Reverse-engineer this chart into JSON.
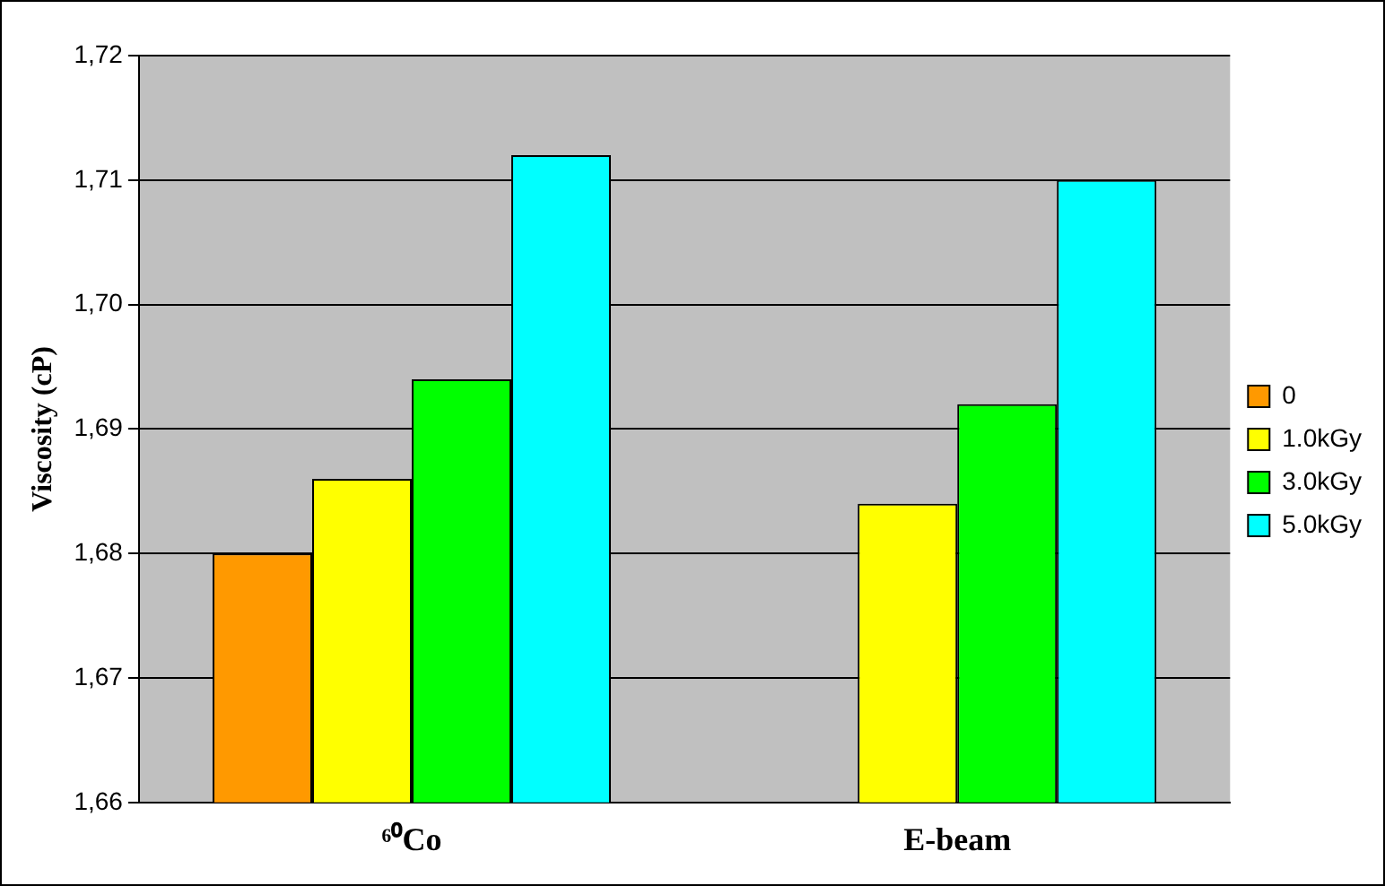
{
  "chart_data": {
    "type": "bar",
    "ylabel": "Viscosity (cP)",
    "categories": [
      "⁶⁰Co",
      "E-beam"
    ],
    "series": [
      {
        "name": "0",
        "color": "#ff9900",
        "values": [
          1.68,
          null
        ]
      },
      {
        "name": "1.0kGy",
        "color": "#ffff00",
        "values": [
          1.686,
          1.684
        ]
      },
      {
        "name": "3.0kGy",
        "color": "#00ff00",
        "values": [
          1.694,
          1.692
        ]
      },
      {
        "name": "5.0kGy",
        "color": "#00ffff",
        "values": [
          1.712,
          1.71
        ]
      }
    ],
    "ylim": [
      1.66,
      1.72
    ],
    "yticks": [
      {
        "value": 1.66,
        "label": "1,66"
      },
      {
        "value": 1.67,
        "label": "1,67"
      },
      {
        "value": 1.68,
        "label": "1,68"
      },
      {
        "value": 1.69,
        "label": "1,69"
      },
      {
        "value": 1.7,
        "label": "1,70"
      },
      {
        "value": 1.71,
        "label": "1,71"
      },
      {
        "value": 1.72,
        "label": "1,72"
      }
    ],
    "grid": "y",
    "legend": "right"
  }
}
